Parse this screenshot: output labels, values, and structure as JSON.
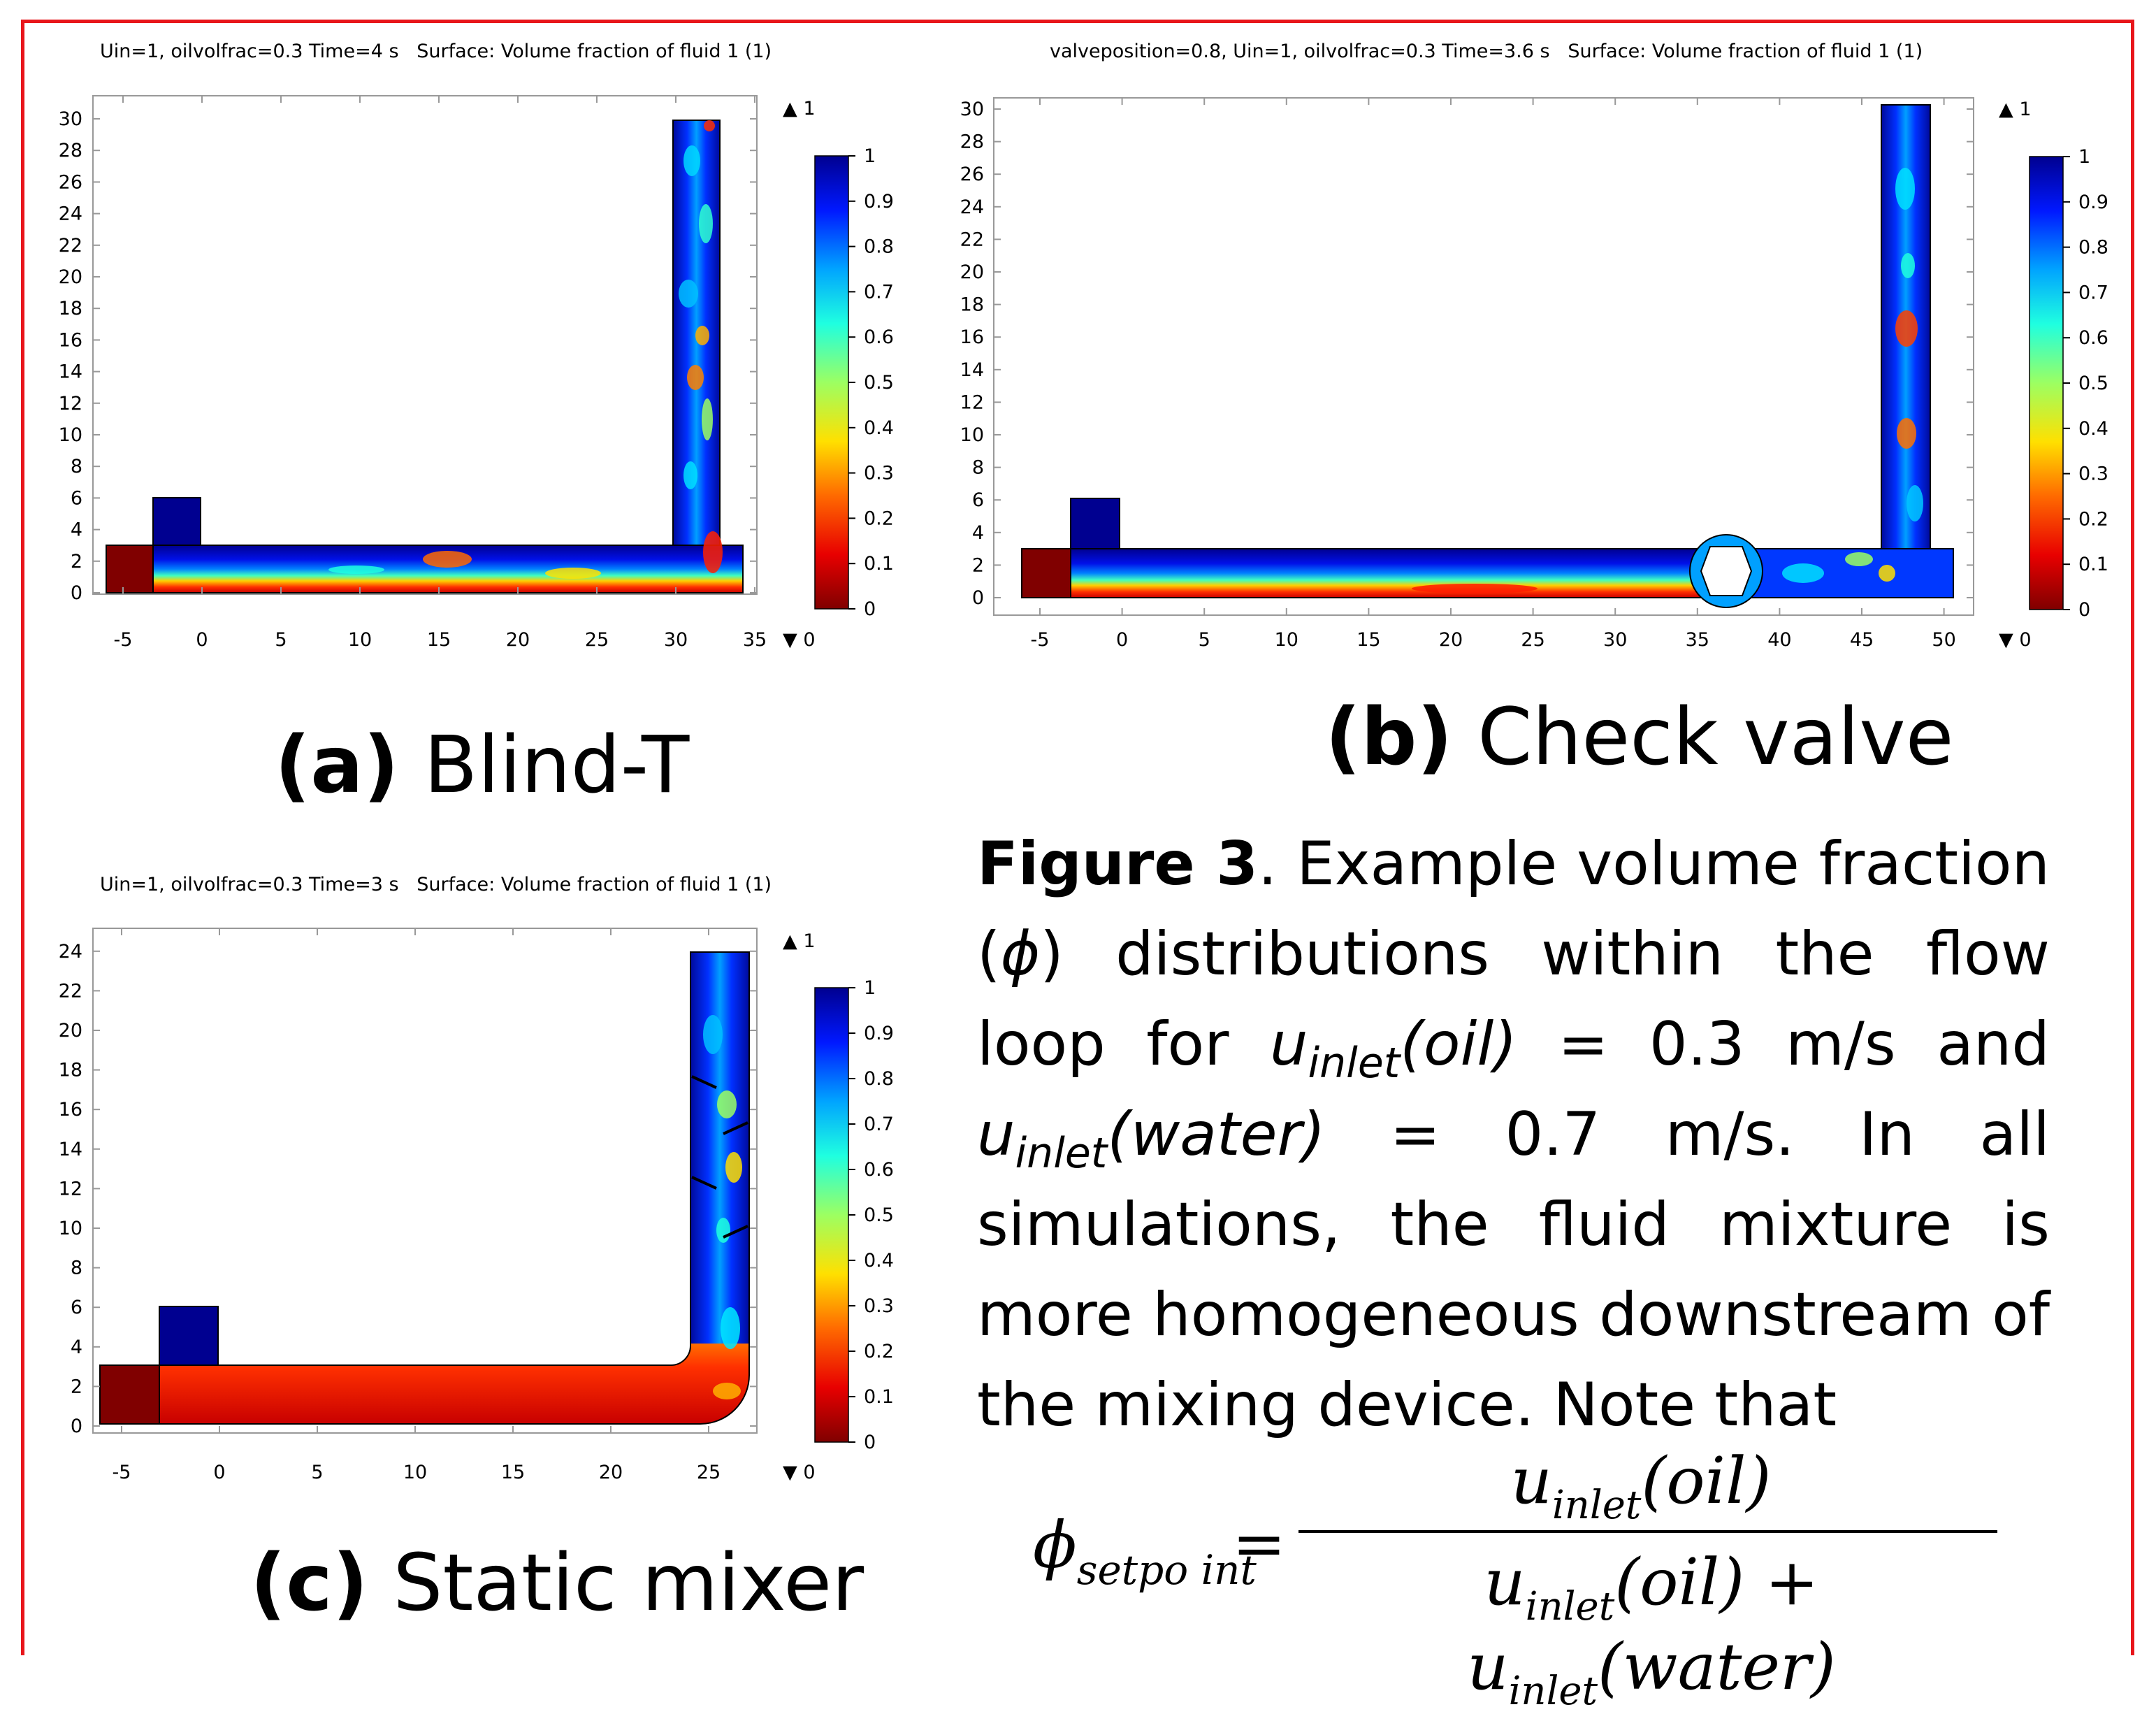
{
  "plots": [
    {
      "id": "a",
      "title": "Uin=1, oilvolfrac=0.3 Time=4 s   Surface: Volume fraction of fluid 1 (1)",
      "x_ticks": [
        "-5",
        "0",
        "5",
        "10",
        "15",
        "20",
        "25",
        "30",
        "35"
      ],
      "y_ticks": [
        "0",
        "2",
        "4",
        "6",
        "8",
        "10",
        "12",
        "14",
        "16",
        "18",
        "20",
        "22",
        "24",
        "26",
        "28",
        "30"
      ],
      "colorbar_ticks": [
        "1",
        "0.9",
        "0.8",
        "0.7",
        "0.6",
        "0.5",
        "0.4",
        "0.3",
        "0.2",
        "0.1",
        "0"
      ],
      "max_marker": "▲ 1",
      "min_marker": "▼ 0",
      "caption_label": "(a)",
      "caption_text": " Blind-T"
    },
    {
      "id": "b",
      "title": "valveposition=0.8, Uin=1, oilvolfrac=0.3 Time=3.6 s   Surface: Volume fraction of fluid 1 (1)",
      "x_ticks": [
        "-5",
        "0",
        "5",
        "10",
        "15",
        "20",
        "25",
        "30",
        "35",
        "40",
        "45",
        "50"
      ],
      "y_ticks": [
        "0",
        "2",
        "4",
        "6",
        "8",
        "10",
        "12",
        "14",
        "16",
        "18",
        "20",
        "22",
        "24",
        "26",
        "28",
        "30"
      ],
      "colorbar_ticks": [
        "1",
        "0.9",
        "0.8",
        "0.7",
        "0.6",
        "0.5",
        "0.4",
        "0.3",
        "0.2",
        "0.1",
        "0"
      ],
      "max_marker": "▲ 1",
      "min_marker": "▼ 0",
      "caption_label": "(b)",
      "caption_text": " Check valve"
    },
    {
      "id": "c",
      "title": "Uin=1, oilvolfrac=0.3 Time=3 s   Surface: Volume fraction of fluid 1 (1)",
      "x_ticks": [
        "-5",
        "0",
        "5",
        "10",
        "15",
        "20",
        "25"
      ],
      "y_ticks": [
        "0",
        "2",
        "4",
        "6",
        "8",
        "10",
        "12",
        "14",
        "16",
        "18",
        "20",
        "22",
        "24"
      ],
      "colorbar_ticks": [
        "1",
        "0.9",
        "0.8",
        "0.7",
        "0.6",
        "0.5",
        "0.4",
        "0.3",
        "0.2",
        "0.1",
        "0"
      ],
      "max_marker": "▲ 1",
      "min_marker": "▼ 0",
      "caption_label": "(c)",
      "caption_text": " Static mixer"
    }
  ],
  "figure_caption": {
    "label": "Figure 3",
    "p1": ". Example volume fraction (",
    "phi": "ϕ",
    "p2": ") distributions within the flow loop for ",
    "u": "u",
    "inlet": "inlet",
    "oil": "(oil)",
    "p3": " = 0.3 m/s and ",
    "water": "(water)",
    "p4": " = 0.7 m/s. In all simulations, the fluid mixture is more homogeneous downstream of the mixing device. Note that"
  },
  "equation": {
    "phi": "ϕ",
    "setpoint": "setpo int",
    "equals": "=",
    "u": "u",
    "inlet": "inlet",
    "oil": "(oil)",
    "plus": " + ",
    "water": "(water)"
  },
  "colors": {
    "frame": "#e8161b",
    "colormap": [
      "#800000",
      "#e80000",
      "#ff6a00",
      "#ffe000",
      "#9cff62",
      "#1fffe0",
      "#00a4ff",
      "#0018ff",
      "#000090"
    ]
  }
}
